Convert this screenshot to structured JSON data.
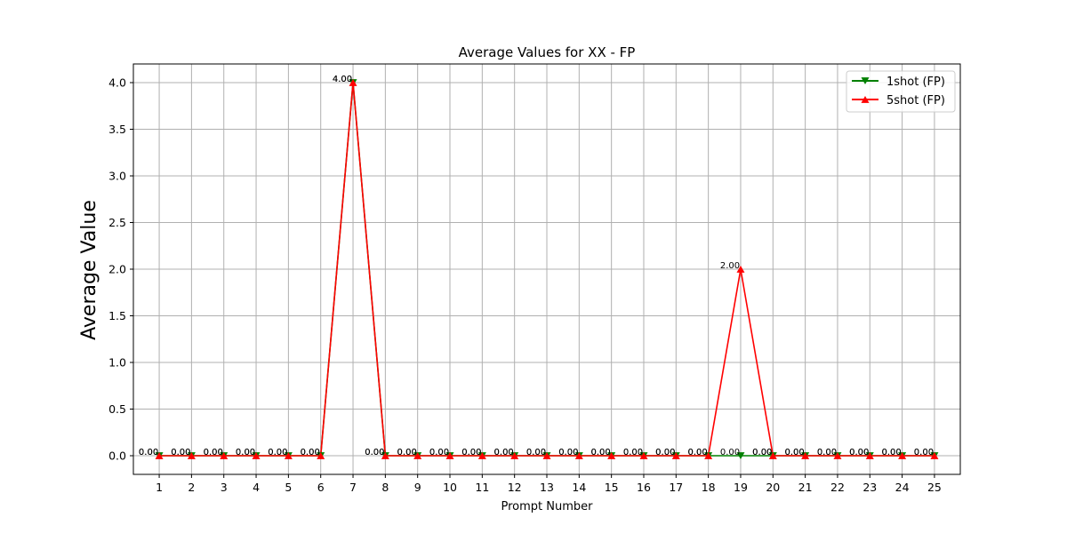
{
  "chart_data": {
    "type": "line",
    "title": "Average Values for XX - FP",
    "xlabel": "Prompt Number",
    "ylabel": "Average Value",
    "x": [
      1,
      2,
      3,
      4,
      5,
      6,
      7,
      8,
      9,
      10,
      11,
      12,
      13,
      14,
      15,
      16,
      17,
      18,
      19,
      20,
      21,
      22,
      23,
      24,
      25
    ],
    "xlim": [
      0.2,
      25.8
    ],
    "ylim": [
      -0.2,
      4.2
    ],
    "yticks": [
      0.0,
      0.5,
      1.0,
      1.5,
      2.0,
      2.5,
      3.0,
      3.5,
      4.0
    ],
    "grid": true,
    "legend_position": "top-right",
    "series": [
      {
        "name": "1shot (FP)",
        "color": "#008000",
        "marker": "triangle-down",
        "values": [
          0,
          0,
          0,
          0,
          0,
          0,
          4,
          0,
          0,
          0,
          0,
          0,
          0,
          0,
          0,
          0,
          0,
          0,
          0,
          0,
          0,
          0,
          0,
          0,
          0
        ]
      },
      {
        "name": "5shot (FP)",
        "color": "#ff0000",
        "marker": "triangle-up",
        "values": [
          0,
          0,
          0,
          0,
          0,
          0,
          4,
          0,
          0,
          0,
          0,
          0,
          0,
          0,
          0,
          0,
          0,
          0,
          2,
          0,
          0,
          0,
          0,
          0,
          0
        ]
      }
    ]
  }
}
